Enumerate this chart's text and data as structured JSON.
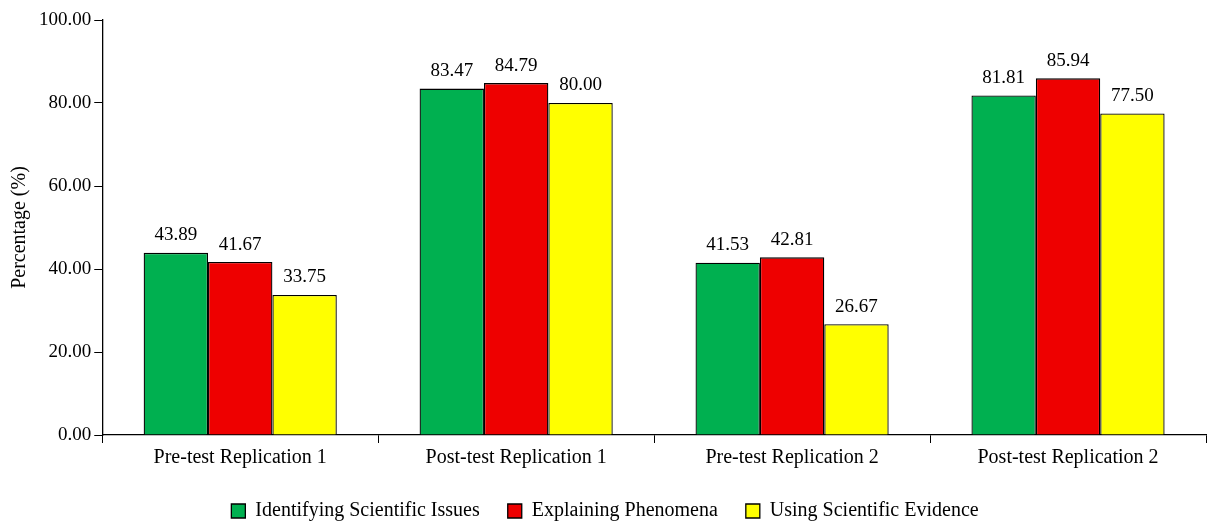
{
  "chart_data": {
    "type": "bar",
    "ylabel": "Percentage (%)",
    "categories": [
      "Pre-test Replication 1",
      "Post-test Replication 1",
      "Pre-test Replication 2",
      "Post-test Replication 2"
    ],
    "series": [
      {
        "name": "Identifying Scientific Issues",
        "color": "#00b050",
        "values": [
          43.89,
          83.47,
          41.53,
          81.81
        ],
        "value_labels": [
          "43.89",
          "83.47",
          "41.53",
          "81.81"
        ]
      },
      {
        "name": "Explaining Phenomena",
        "color": "#ee0000",
        "values": [
          41.67,
          84.79,
          42.81,
          85.94
        ],
        "value_labels": [
          "41.67",
          "84.79",
          "42.81",
          "85.94"
        ]
      },
      {
        "name": "Using Scientific Evidence",
        "color": "#ffff00",
        "values": [
          33.75,
          80.0,
          26.67,
          77.5
        ],
        "value_labels": [
          "33.75",
          "80.00",
          "26.67",
          "77.50"
        ]
      }
    ],
    "ylim": [
      0,
      100
    ],
    "yticks": [
      {
        "value": 0,
        "label": "0.00"
      },
      {
        "value": 20,
        "label": "20.00"
      },
      {
        "value": 40,
        "label": "40.00"
      },
      {
        "value": 60,
        "label": "60.00"
      },
      {
        "value": 80,
        "label": "80.00"
      },
      {
        "value": 100,
        "label": "100.00"
      }
    ],
    "grid": false,
    "legend": "bottom"
  }
}
